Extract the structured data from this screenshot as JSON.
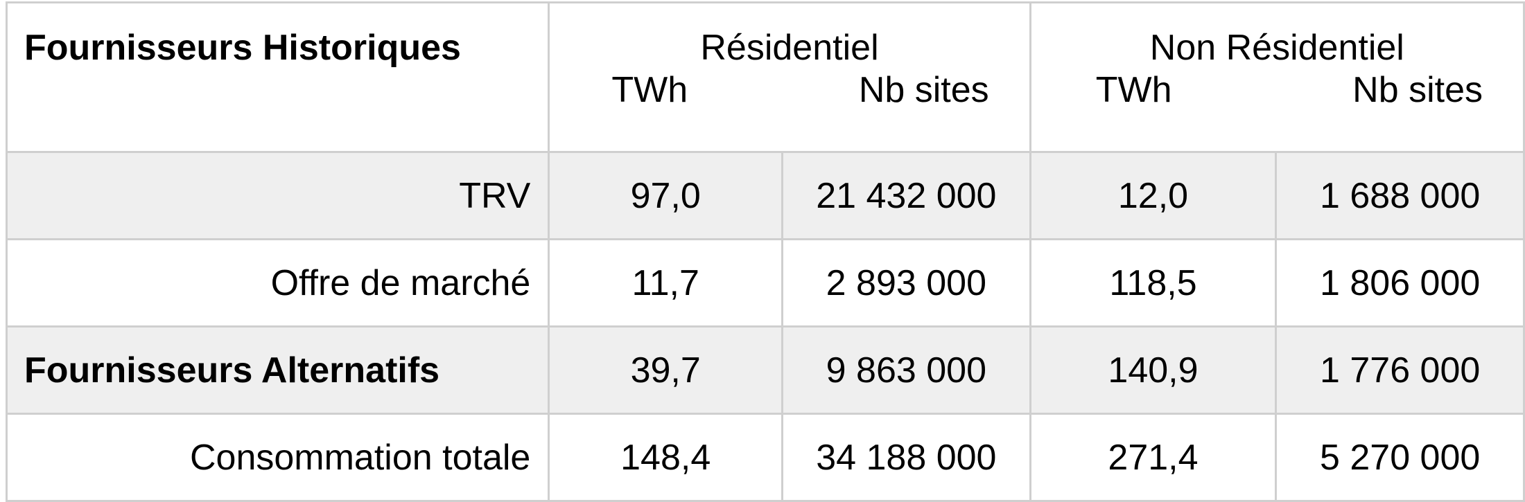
{
  "chart_data": {
    "type": "table",
    "header": {
      "title": "Fournisseurs Historiques",
      "groups": [
        {
          "name": "Résidentiel",
          "subheaders": [
            "TWh",
            "Nb sites"
          ]
        },
        {
          "name": "Non Résidentiel",
          "subheaders": [
            "TWh",
            "Nb  sites"
          ]
        }
      ]
    },
    "rows": [
      {
        "label": "TRV",
        "bold": false,
        "cells": [
          "97,0",
          "21 432 000",
          "12,0",
          "1 688 000"
        ]
      },
      {
        "label": "Offre de marché",
        "bold": false,
        "cells": [
          "11,7",
          "2 893 000",
          "118,5",
          "1 806 000"
        ]
      },
      {
        "label": "Fournisseurs Alternatifs",
        "bold": true,
        "cells": [
          "39,7",
          "9 863 000",
          "140,9",
          "1 776 000"
        ]
      },
      {
        "label": "Consommation totale",
        "bold": false,
        "cells": [
          "148,4",
          "34 188 000",
          "271,4",
          "5 270 000"
        ]
      }
    ]
  }
}
